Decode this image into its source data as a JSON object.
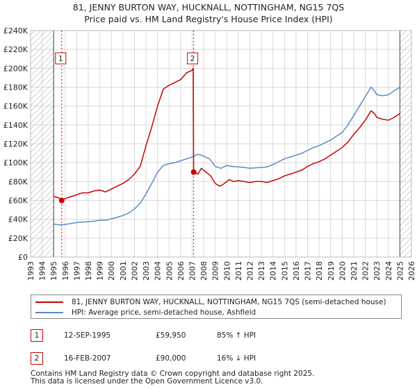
{
  "title_line1": "81, JENNY BURTON WAY, HUCKNALL, NOTTINGHAM, NG15 7QS",
  "title_line2": "Price paid vs. HM Land Registry's House Price Index (HPI)",
  "colors": {
    "property": "#cc0000",
    "hpi": "#5a8ac6",
    "grid": "#d8d8d8",
    "hatch": "#cfcfcf"
  },
  "chart_data": {
    "type": "line",
    "x_ticks": [
      1993,
      1994,
      1995,
      1996,
      1997,
      1998,
      1999,
      2000,
      2001,
      2002,
      2003,
      2004,
      2005,
      2006,
      2007,
      2008,
      2009,
      2010,
      2011,
      2012,
      2013,
      2014,
      2015,
      2016,
      2017,
      2018,
      2019,
      2020,
      2021,
      2022,
      2023,
      2024,
      2025,
      2026
    ],
    "y_ticks": [
      0,
      20000,
      40000,
      60000,
      80000,
      100000,
      120000,
      140000,
      160000,
      180000,
      200000,
      220000,
      240000
    ],
    "y_tick_labels": [
      "£0",
      "£20K",
      "£40K",
      "£60K",
      "£80K",
      "£100K",
      "£120K",
      "£140K",
      "£160K",
      "£180K",
      "£200K",
      "£220K",
      "£240K"
    ],
    "xlim": [
      1993,
      2026
    ],
    "ylim": [
      0,
      240000
    ],
    "data_start": 1995.0,
    "data_end": 2025.0,
    "series": [
      {
        "name": "81, JENNY BURTON WAY, HUCKNALL, NOTTINGHAM, NG15 7QS (semi-detached house)",
        "points": [
          [
            1995.0,
            64000
          ],
          [
            1995.4,
            63000
          ],
          [
            1995.7,
            59950
          ],
          [
            1996.0,
            62000
          ],
          [
            1996.5,
            64000
          ],
          [
            1997.0,
            66000
          ],
          [
            1997.5,
            68000
          ],
          [
            1998.0,
            68000
          ],
          [
            1998.5,
            70000
          ],
          [
            1999.0,
            71000
          ],
          [
            1999.5,
            69000
          ],
          [
            2000.0,
            72000
          ],
          [
            2000.5,
            75000
          ],
          [
            2001.0,
            78000
          ],
          [
            2001.5,
            82000
          ],
          [
            2002.0,
            88000
          ],
          [
            2002.5,
            96000
          ],
          [
            2003.0,
            118000
          ],
          [
            2003.5,
            138000
          ],
          [
            2004.0,
            160000
          ],
          [
            2004.5,
            178000
          ],
          [
            2005.0,
            182000
          ],
          [
            2005.5,
            185000
          ],
          [
            2006.0,
            188000
          ],
          [
            2006.5,
            195000
          ],
          [
            2007.0,
            198000
          ],
          [
            2007.1,
            200000
          ],
          [
            2007.13,
            90000
          ],
          [
            2007.5,
            88000
          ],
          [
            2007.8,
            94000
          ],
          [
            2008.2,
            90000
          ],
          [
            2008.6,
            86000
          ],
          [
            2009.0,
            78000
          ],
          [
            2009.4,
            75000
          ],
          [
            2009.8,
            78000
          ],
          [
            2010.2,
            82000
          ],
          [
            2010.6,
            80000
          ],
          [
            2011.0,
            81000
          ],
          [
            2011.5,
            80000
          ],
          [
            2012.0,
            79000
          ],
          [
            2012.5,
            80000
          ],
          [
            2013.0,
            80000
          ],
          [
            2013.5,
            79000
          ],
          [
            2014.0,
            81000
          ],
          [
            2014.5,
            83000
          ],
          [
            2015.0,
            86000
          ],
          [
            2015.5,
            88000
          ],
          [
            2016.0,
            90000
          ],
          [
            2016.5,
            92000
          ],
          [
            2017.0,
            96000
          ],
          [
            2017.5,
            99000
          ],
          [
            2018.0,
            101000
          ],
          [
            2018.5,
            104000
          ],
          [
            2019.0,
            108000
          ],
          [
            2019.5,
            112000
          ],
          [
            2020.0,
            116000
          ],
          [
            2020.5,
            122000
          ],
          [
            2021.0,
            130000
          ],
          [
            2021.5,
            137000
          ],
          [
            2022.0,
            145000
          ],
          [
            2022.5,
            155000
          ],
          [
            2022.8,
            152000
          ],
          [
            2023.0,
            148000
          ],
          [
            2023.5,
            146000
          ],
          [
            2024.0,
            145000
          ],
          [
            2024.5,
            148000
          ],
          [
            2025.0,
            152000
          ]
        ]
      },
      {
        "name": "HPI: Average price, semi-detached house, Ashfield",
        "points": [
          [
            1995.0,
            35000
          ],
          [
            1995.5,
            34000
          ],
          [
            1996.0,
            34500
          ],
          [
            1996.5,
            35500
          ],
          [
            1997.0,
            36500
          ],
          [
            1997.5,
            37000
          ],
          [
            1998.0,
            37500
          ],
          [
            1998.5,
            38000
          ],
          [
            1999.0,
            39000
          ],
          [
            1999.5,
            39000
          ],
          [
            2000.0,
            40500
          ],
          [
            2000.5,
            42000
          ],
          [
            2001.0,
            44000
          ],
          [
            2001.5,
            46500
          ],
          [
            2002.0,
            51000
          ],
          [
            2002.5,
            57000
          ],
          [
            2003.0,
            67000
          ],
          [
            2003.5,
            78000
          ],
          [
            2004.0,
            90000
          ],
          [
            2004.5,
            97000
          ],
          [
            2005.0,
            99000
          ],
          [
            2005.5,
            100000
          ],
          [
            2006.0,
            102000
          ],
          [
            2006.5,
            104000
          ],
          [
            2007.0,
            106000
          ],
          [
            2007.5,
            109000
          ],
          [
            2008.0,
            107000
          ],
          [
            2008.5,
            104000
          ],
          [
            2009.0,
            96000
          ],
          [
            2009.5,
            94000
          ],
          [
            2010.0,
            97000
          ],
          [
            2010.5,
            96000
          ],
          [
            2011.0,
            95500
          ],
          [
            2011.5,
            95000
          ],
          [
            2012.0,
            94000
          ],
          [
            2012.5,
            94500
          ],
          [
            2013.0,
            95000
          ],
          [
            2013.5,
            95500
          ],
          [
            2014.0,
            98000
          ],
          [
            2014.5,
            101000
          ],
          [
            2015.0,
            104000
          ],
          [
            2015.5,
            106000
          ],
          [
            2016.0,
            108000
          ],
          [
            2016.5,
            110000
          ],
          [
            2017.0,
            113000
          ],
          [
            2017.5,
            116000
          ],
          [
            2018.0,
            118000
          ],
          [
            2018.5,
            121000
          ],
          [
            2019.0,
            124000
          ],
          [
            2019.5,
            128000
          ],
          [
            2020.0,
            132000
          ],
          [
            2020.5,
            140000
          ],
          [
            2021.0,
            150000
          ],
          [
            2021.5,
            160000
          ],
          [
            2022.0,
            170000
          ],
          [
            2022.5,
            180000
          ],
          [
            2022.8,
            176000
          ],
          [
            2023.0,
            172000
          ],
          [
            2023.5,
            171000
          ],
          [
            2024.0,
            172000
          ],
          [
            2024.5,
            176000
          ],
          [
            2025.0,
            180000
          ]
        ]
      }
    ],
    "sales": [
      {
        "label": "1",
        "x": 1995.7,
        "y": 59950
      },
      {
        "label": "2",
        "x": 2007.13,
        "y": 90000
      }
    ]
  },
  "legend": {
    "property_label": "81, JENNY BURTON WAY, HUCKNALL, NOTTINGHAM, NG15 7QS (semi-detached house)",
    "hpi_label": "HPI: Average price, semi-detached house, Ashfield"
  },
  "sales_table": [
    {
      "num": "1",
      "date": "12-SEP-1995",
      "price": "£59,950",
      "hpi": "85% ↑ HPI"
    },
    {
      "num": "2",
      "date": "16-FEB-2007",
      "price": "£90,000",
      "hpi": "16% ↓ HPI"
    }
  ],
  "footer_line1": "Contains HM Land Registry data © Crown copyright and database right 2025.",
  "footer_line2": "This data is licensed under the Open Government Licence v3.0."
}
